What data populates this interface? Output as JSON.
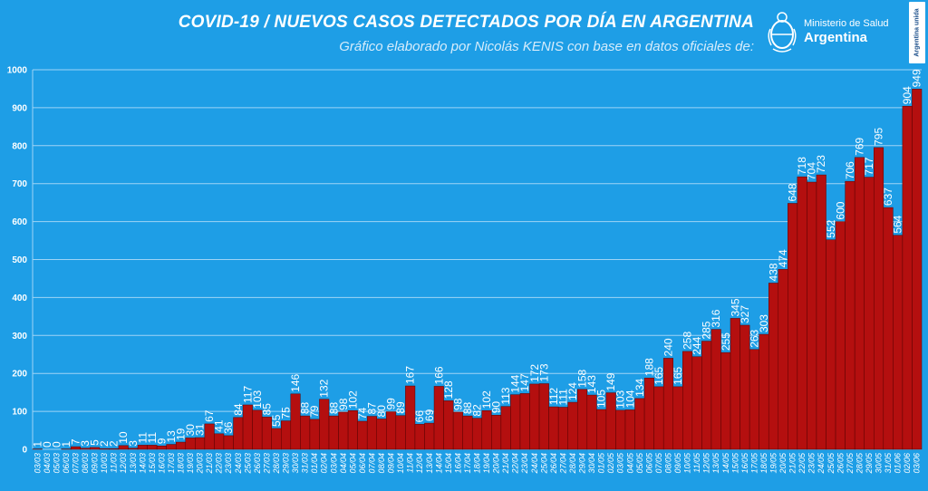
{
  "header": {
    "title": "COVID-19  /  NUEVOS CASOS DETECTADOS POR DÍA EN ARGENTINA",
    "subtitle": "Gráfico elaborado por Nicolás KENIS con base en datos oficiales de:"
  },
  "logo": {
    "line1": "Ministerio de Salud",
    "line2": "Argentina",
    "badge": "Argentina unida"
  },
  "colors": {
    "background": "#1e9ee6",
    "bar": "#b40f0f",
    "bar_edge": "#5a0000",
    "grid": "#9fd4f5",
    "text": "#ffffff"
  },
  "chart_data": {
    "type": "bar",
    "xlabel": "",
    "ylabel": "",
    "ylim": [
      0,
      1000
    ],
    "yticks": [
      0,
      100,
      200,
      300,
      400,
      500,
      600,
      700,
      800,
      900,
      1000
    ],
    "grid": true,
    "legend": "none",
    "categories": [
      "03/03",
      "04/03",
      "05/03",
      "06/03",
      "07/03",
      "08/03",
      "09/03",
      "10/03",
      "11/03",
      "12/03",
      "13/03",
      "14/03",
      "15/03",
      "16/03",
      "17/03",
      "18/03",
      "19/03",
      "20/03",
      "21/03",
      "22/03",
      "23/03",
      "24/03",
      "25/03",
      "26/03",
      "27/03",
      "28/03",
      "29/03",
      "30/03",
      "31/03",
      "01/04",
      "02/04",
      "03/04",
      "04/04",
      "05/04",
      "06/04",
      "07/04",
      "08/04",
      "09/04",
      "10/04",
      "11/04",
      "12/04",
      "13/04",
      "14/04",
      "15/04",
      "16/04",
      "17/04",
      "18/04",
      "19/04",
      "20/04",
      "21/04",
      "22/04",
      "23/04",
      "24/04",
      "25/04",
      "26/04",
      "27/04",
      "28/04",
      "29/04",
      "30/04",
      "01/05",
      "02/05",
      "03/05",
      "04/05",
      "05/05",
      "06/05",
      "07/05",
      "08/05",
      "09/05",
      "10/05",
      "11/05",
      "12/05",
      "13/05",
      "14/05",
      "15/05",
      "16/05",
      "17/05",
      "18/05",
      "19/05",
      "20/05",
      "21/05",
      "22/05",
      "23/05",
      "24/05",
      "25/05",
      "26/05",
      "27/05",
      "28/05",
      "29/05",
      "30/05",
      "31/05",
      "01/06",
      "02/06",
      "03/06"
    ],
    "values": [
      1,
      0,
      0,
      1,
      7,
      3,
      5,
      2,
      2,
      10,
      3,
      11,
      11,
      9,
      13,
      19,
      30,
      31,
      67,
      41,
      36,
      84,
      117,
      103,
      85,
      55,
      75,
      146,
      88,
      79,
      132,
      88,
      98,
      102,
      74,
      87,
      80,
      99,
      89,
      167,
      66,
      69,
      166,
      128,
      98,
      88,
      82,
      102,
      90,
      113,
      144,
      147,
      172,
      173,
      112,
      111,
      124,
      158,
      143,
      105,
      149,
      103,
      104,
      134,
      188,
      165,
      240,
      165,
      258,
      244,
      285,
      316,
      255,
      345,
      327,
      263,
      303,
      438,
      474,
      648,
      718,
      704,
      723,
      552,
      600,
      706,
      769,
      717,
      795,
      637,
      564,
      904,
      949
    ]
  }
}
